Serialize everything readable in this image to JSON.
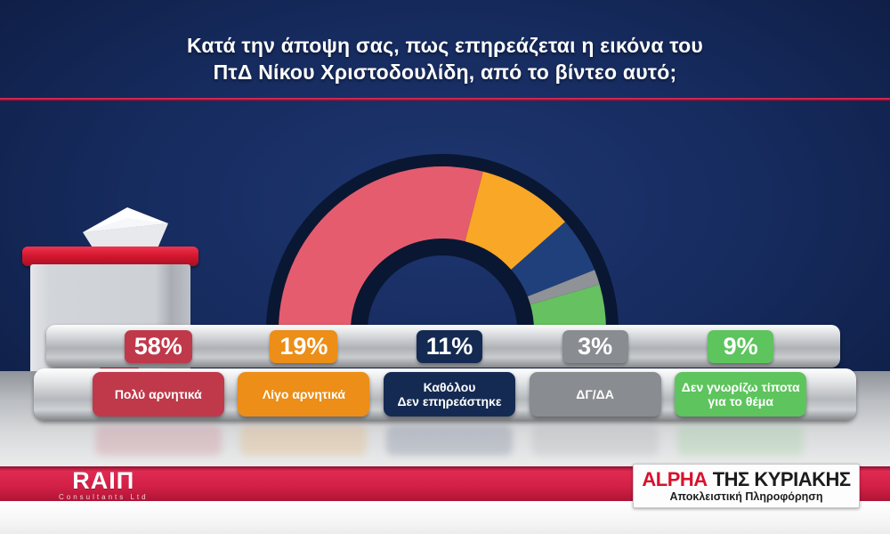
{
  "header": {
    "title_line1": "Κατά την άποψη σας, πως επηρεάζεται η εικόνα του",
    "title_line2": "ΠτΔ Νίκου Χριστοδουλίδη, από το βίντεο αυτό;"
  },
  "chart_data": {
    "type": "pie",
    "variant": "half-donut",
    "title": "Κατά την άποψη σας, πως επηρεάζεται η εικόνα του ΠτΔ Νίκου Χριστοδουλίδη, από το βίντεο αυτό;",
    "categories": [
      "Πολύ αρνητικά",
      "Λίγο αρνητικά",
      "Καθόλου Δεν επηρεάστηκε",
      "ΔΓ/ΔΑ",
      "Δεν γνωρίζω τίποτα για το θέμα"
    ],
    "values": [
      58,
      19,
      11,
      3,
      9
    ],
    "unit": "%",
    "start_angle_deg": 180,
    "end_angle_deg": 0,
    "legend_position": "bottom",
    "segment_colors": [
      "#e55c6f",
      "#f9a726",
      "#20407c",
      "#8f9296",
      "#66c161"
    ],
    "ring_outline_color": "#0a1732"
  },
  "results": [
    {
      "pct": "58%",
      "label_lines": [
        "Πολύ αρνητικά"
      ],
      "color": "#bf394b"
    },
    {
      "pct": "19%",
      "label_lines": [
        "Λίγο αρνητικά"
      ],
      "color": "#ec8e17"
    },
    {
      "pct": "11%",
      "label_lines": [
        "Καθόλου",
        "Δεν επηρεάστηκε"
      ],
      "color": "#142a52"
    },
    {
      "pct": "3%",
      "label_lines": [
        "ΔΓ/ΔΑ"
      ],
      "color": "#898c90"
    },
    {
      "pct": "9%",
      "label_lines": [
        "Δεν γνωρίζω τίποτα",
        "για το θέμα"
      ],
      "color": "#5ec45e"
    }
  ],
  "footer": {
    "rai_logo": "RAIΠ",
    "rai_sub": "Consultants Ltd",
    "alpha_brand": "ALPHA",
    "alpha_rest": "ΤΗΣ ΚΥΡΙΑΚΗΣ",
    "alpha_sub": "Αποκλειστική Πληροφόρηση"
  },
  "colors": {
    "background_navy": "#152a5c",
    "divider_red": "#c21a43",
    "footer_strip_red": "#d21f45",
    "platform_silver": "#b5b8bc",
    "floor_gray": "#c9cbce",
    "ballot_lid_red": "#d5182f",
    "alpha_logo_red": "#e0213c",
    "title_text": "#ffffff"
  }
}
